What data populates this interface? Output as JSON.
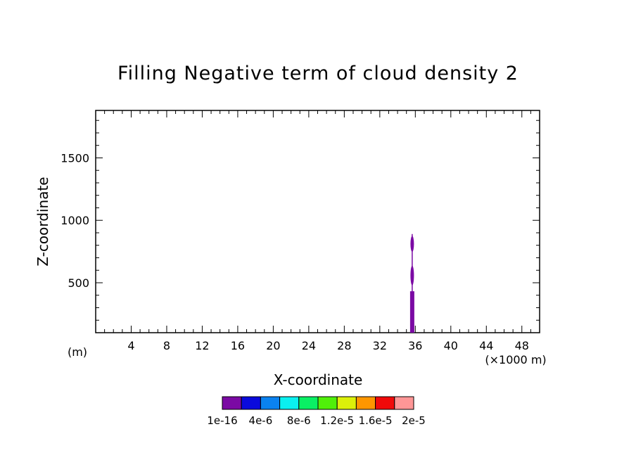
{
  "chart_data": {
    "type": "heatmap",
    "title": "Filling Negative term of cloud density 2",
    "xlabel": "X-coordinate",
    "ylabel": "Z-coordinate",
    "x_unit_left": "(m)",
    "x_unit_right": "(×1000 m)",
    "xlim": [
      0,
      50
    ],
    "ylim": [
      100,
      1880
    ],
    "x_ticks": [
      4,
      8,
      12,
      16,
      20,
      24,
      28,
      32,
      36,
      40,
      44,
      48
    ],
    "y_ticks": [
      500,
      1000,
      1500
    ],
    "colorbar": {
      "colors": [
        "#7b0aa4",
        "#0a0adc",
        "#0a82f0",
        "#0af0f0",
        "#0af064",
        "#50f00a",
        "#dcf00a",
        "#ff9600",
        "#f00a0a",
        "#ff9696"
      ],
      "labels": [
        "1e-16",
        "4e-6",
        "8e-6",
        "1.2e-5",
        "1.6e-5",
        "2e-5"
      ]
    },
    "features": [
      {
        "x_center": 35.65,
        "z_bottom": 100,
        "z_top": 890,
        "color": "#7b0aa4"
      }
    ]
  }
}
